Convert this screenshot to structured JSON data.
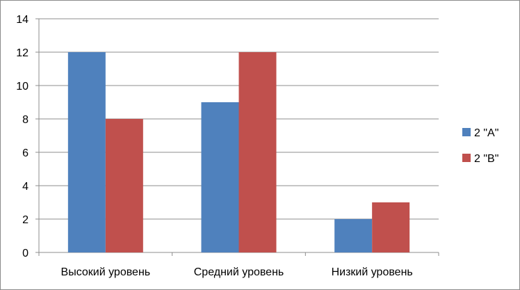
{
  "chart_data": {
    "type": "bar",
    "categories": [
      "Высокий уровень",
      "Средний уровень",
      "Низкий уровень"
    ],
    "series": [
      {
        "name": "2 \"А\"",
        "values": [
          12,
          9,
          2
        ],
        "color": "#4f81bd"
      },
      {
        "name": "2 \"В\"",
        "values": [
          8,
          12,
          3
        ],
        "color": "#c0504d"
      }
    ],
    "ylim": [
      0,
      14
    ],
    "ytick_step": 2,
    "yticks": [
      "0",
      "2",
      "4",
      "6",
      "8",
      "10",
      "12",
      "14"
    ],
    "grid": true,
    "legend_position": "right",
    "title": "",
    "xlabel": "",
    "ylabel": ""
  }
}
